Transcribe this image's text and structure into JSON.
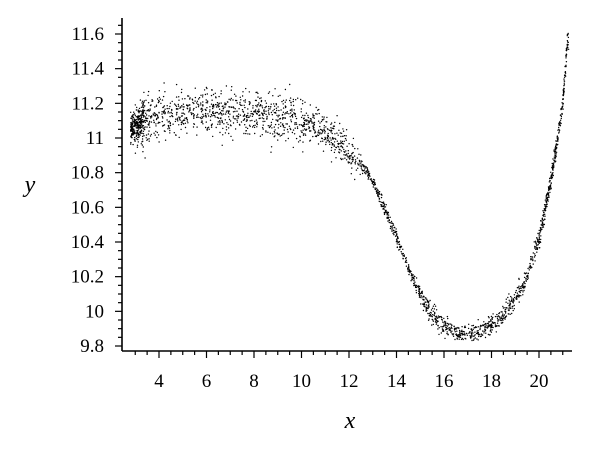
{
  "chart_data": {
    "type": "scatter",
    "title": "",
    "xlabel": "x",
    "ylabel": "y",
    "xlim": [
      2.6,
      21.6
    ],
    "ylim": [
      9.78,
      11.68
    ],
    "x_ticks": [
      4,
      6,
      8,
      10,
      12,
      14,
      16,
      18,
      20
    ],
    "x_tick_labels": [
      "4",
      "6",
      "8",
      "10",
      "12",
      "14",
      "16",
      "18",
      "20"
    ],
    "y_ticks": [
      9.8,
      10,
      10.2,
      10.4,
      10.6,
      10.8,
      11,
      11.2,
      11.4,
      11.6
    ],
    "y_tick_labels": [
      "9.8",
      "10",
      "10.2",
      "10.4",
      "10.6",
      "10.8",
      "11",
      "11.2",
      "11.4",
      "11.6"
    ],
    "grid": false,
    "marker_color": "#000000",
    "series": [
      {
        "description_of_trend_points": "dense point cloud; centre curve sampled below",
        "x": [
          2.9,
          3.5,
          4.5,
          5.5,
          6.5,
          7.5,
          8.5,
          9.5,
          10.5,
          11.5,
          12.5,
          13.0,
          13.5,
          14.0,
          14.5,
          15.0,
          15.5,
          16.0,
          16.5,
          17.0,
          17.5,
          18.0,
          18.5,
          19.0,
          19.5,
          20.0,
          20.5,
          21.0,
          21.2
        ],
        "y": [
          11.06,
          11.09,
          11.12,
          11.13,
          11.13,
          11.12,
          11.1,
          11.08,
          11.04,
          10.97,
          10.85,
          10.75,
          10.6,
          10.42,
          10.25,
          10.1,
          9.98,
          9.92,
          9.88,
          9.87,
          9.88,
          9.92,
          9.98,
          10.07,
          10.2,
          10.42,
          10.75,
          11.2,
          11.55
        ]
      }
    ]
  }
}
